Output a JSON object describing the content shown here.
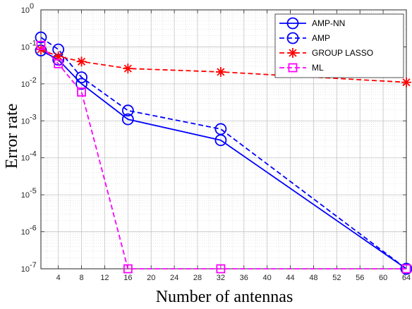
{
  "chart_data": {
    "type": "line",
    "xlabel": "Number of antennas",
    "ylabel": "Error rate",
    "xlim": [
      1,
      64
    ],
    "ylim": [
      1e-07,
      1
    ],
    "y_scale": "log",
    "grid": true,
    "minor_grid": true,
    "legend_position": "top-right",
    "x_ticks": [
      4,
      8,
      12,
      16,
      20,
      24,
      28,
      32,
      36,
      40,
      44,
      48,
      52,
      56,
      60,
      64
    ],
    "y_ticks": [
      {
        "value": 1e-07,
        "base": "10",
        "exp": "-7"
      },
      {
        "value": 1e-06,
        "base": "10",
        "exp": "-6"
      },
      {
        "value": 1e-05,
        "base": "10",
        "exp": "-5"
      },
      {
        "value": 0.0001,
        "base": "10",
        "exp": "-4"
      },
      {
        "value": 0.001,
        "base": "10",
        "exp": "-3"
      },
      {
        "value": 0.01,
        "base": "10",
        "exp": "-2"
      },
      {
        "value": 0.1,
        "base": "10",
        "exp": "-1"
      },
      {
        "value": 1,
        "base": "10",
        "exp": "0"
      }
    ],
    "series": [
      {
        "name": "AMP-NN",
        "color": "#0000ff",
        "dash": "solid",
        "marker": "circle",
        "x": [
          1,
          4,
          8,
          16,
          32,
          64
        ],
        "y": [
          0.08,
          0.045,
          0.01,
          0.0011,
          0.0003,
          1e-07
        ]
      },
      {
        "name": "AMP",
        "color": "#0000ff",
        "dash": "dashed",
        "marker": "circle",
        "x": [
          1,
          4,
          8,
          16,
          32,
          64
        ],
        "y": [
          0.18,
          0.085,
          0.015,
          0.0019,
          0.0006,
          1e-07
        ]
      },
      {
        "name": "GROUP LASSO",
        "color": "#ff0000",
        "dash": "dashed",
        "marker": "asterisk",
        "x": [
          1,
          4,
          8,
          16,
          32,
          64
        ],
        "y": [
          0.085,
          0.055,
          0.04,
          0.026,
          0.021,
          0.011
        ]
      },
      {
        "name": "ML",
        "color": "#ff00ff",
        "dash": "dashed",
        "marker": "square",
        "x": [
          1,
          4,
          8,
          16,
          32,
          64
        ],
        "y": [
          0.11,
          0.035,
          0.006,
          1e-07,
          1e-07,
          1e-07
        ]
      }
    ]
  }
}
